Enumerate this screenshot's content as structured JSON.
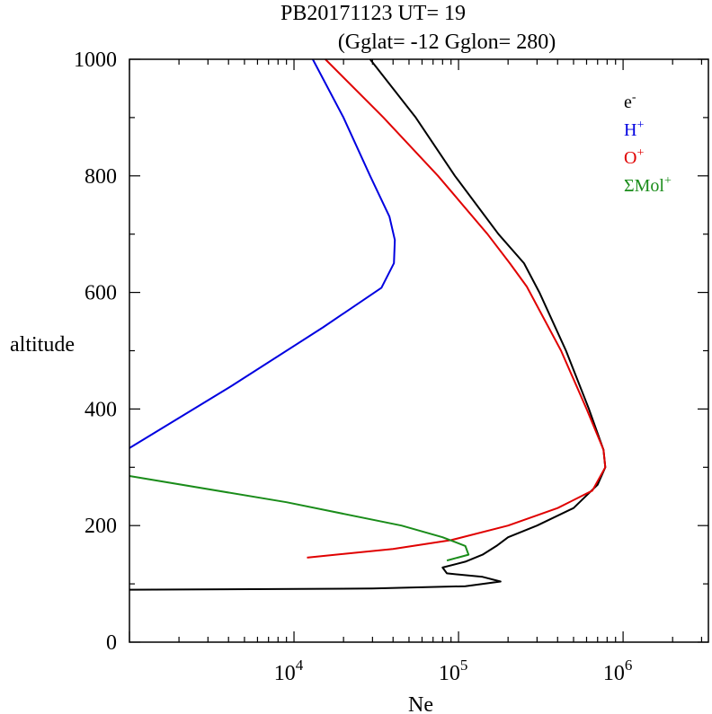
{
  "title_line1": "PB20171123   UT=  19",
  "title_line2": "(Gglat= -12   Gglon=  280)",
  "chart_data": {
    "type": "line",
    "xlabel": "Ne",
    "ylabel": "altitude",
    "xscale": "log",
    "xlim": [
      1000,
      3300000
    ],
    "ylim": [
      0,
      1000
    ],
    "x_tick_labels": [
      {
        "base": "10",
        "exp": "4",
        "value": 10000
      },
      {
        "base": "10",
        "exp": "5",
        "value": 100000
      },
      {
        "base": "10",
        "exp": "6",
        "value": 1000000
      }
    ],
    "y_ticks": [
      0,
      200,
      400,
      600,
      800,
      1000
    ],
    "legend_position": "top-right",
    "series": [
      {
        "name": "e",
        "name_sup": "-",
        "color": "#000000",
        "points": [
          [
            1000,
            90
          ],
          [
            30000,
            92
          ],
          [
            110000,
            96
          ],
          [
            180000,
            104
          ],
          [
            140000,
            112
          ],
          [
            85000,
            118
          ],
          [
            80000,
            128
          ],
          [
            110000,
            138
          ],
          [
            140000,
            150
          ],
          [
            170000,
            165
          ],
          [
            200000,
            180
          ],
          [
            300000,
            200
          ],
          [
            500000,
            230
          ],
          [
            700000,
            270
          ],
          [
            780000,
            300
          ],
          [
            760000,
            330
          ],
          [
            620000,
            400
          ],
          [
            450000,
            500
          ],
          [
            310000,
            600
          ],
          [
            250000,
            650
          ],
          [
            175000,
            700
          ],
          [
            95000,
            800
          ],
          [
            55000,
            900
          ],
          [
            29000,
            1000
          ]
        ]
      },
      {
        "name": "H",
        "name_sup": "+",
        "color": "#0000e0",
        "points": [
          [
            1000,
            333
          ],
          [
            4200,
            440
          ],
          [
            15000,
            540
          ],
          [
            34000,
            608
          ],
          [
            40500,
            650
          ],
          [
            41000,
            690
          ],
          [
            38000,
            730
          ],
          [
            29000,
            800
          ],
          [
            20000,
            900
          ],
          [
            13000,
            1000
          ]
        ]
      },
      {
        "name": "O",
        "name_sup": "+",
        "color": "#e00000",
        "points": [
          [
            12000,
            145
          ],
          [
            40000,
            160
          ],
          [
            90000,
            175
          ],
          [
            200000,
            200
          ],
          [
            400000,
            230
          ],
          [
            650000,
            260
          ],
          [
            780000,
            300
          ],
          [
            760000,
            330
          ],
          [
            600000,
            400
          ],
          [
            420000,
            500
          ],
          [
            260000,
            610
          ],
          [
            205000,
            650
          ],
          [
            150000,
            700
          ],
          [
            75000,
            800
          ],
          [
            35000,
            900
          ],
          [
            15500,
            1000
          ]
        ]
      },
      {
        "name": "ΣMol",
        "name_sup": "+",
        "color": "#1a8c1a",
        "points": [
          [
            1000,
            285
          ],
          [
            9000,
            240
          ],
          [
            45000,
            200
          ],
          [
            80000,
            180
          ],
          [
            110000,
            165
          ],
          [
            115000,
            150
          ],
          [
            85000,
            140
          ]
        ]
      }
    ]
  }
}
